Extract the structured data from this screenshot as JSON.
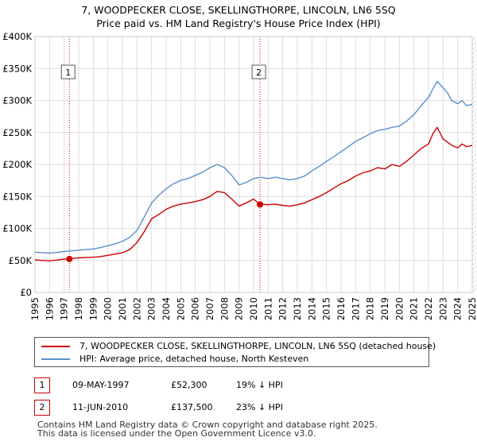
{
  "title_line1": "7, WOODPECKER CLOSE, SKELLINGTHORPE, LINCOLN, LN6 5SQ",
  "title_line2": "Price paid vs. HM Land Registry's House Price Index (HPI)",
  "colors": {
    "property": "#cc0000",
    "hpi": "#5b8fd0",
    "grid": "#dddddd",
    "sale_marker": "#cc0000"
  },
  "chart_data": {
    "type": "line",
    "x_ticks": [
      "1995",
      "1996",
      "1997",
      "1998",
      "1999",
      "2000",
      "2001",
      "2002",
      "2003",
      "2004",
      "2005",
      "2006",
      "2007",
      "2008",
      "2009",
      "2010",
      "2011",
      "2012",
      "2013",
      "2014",
      "2015",
      "2016",
      "2017",
      "2018",
      "2019",
      "2020",
      "2021",
      "2022",
      "2023",
      "2024",
      "2025"
    ],
    "y_ticks": [
      "£0",
      "£50K",
      "£100K",
      "£150K",
      "£200K",
      "£250K",
      "£300K",
      "£350K",
      "£400K"
    ],
    "xlim": [
      1995,
      2025
    ],
    "ylim": [
      0,
      400000
    ],
    "grid": true,
    "hatched_region_start": 2025,
    "series": [
      {
        "name": "7, WOODPECKER CLOSE, SKELLINGTHORPE, LINCOLN, LN6 5SQ (detached house)",
        "color": "#cc0000",
        "x": [
          1995,
          1995.5,
          1996,
          1996.5,
          1997,
          1997.36,
          1997.5,
          1998,
          1998.5,
          1999,
          1999.5,
          2000,
          2000.5,
          2001,
          2001.5,
          2002,
          2002.5,
          2003,
          2003.5,
          2004,
          2004.5,
          2005,
          2005.5,
          2006,
          2006.5,
          2007,
          2007.5,
          2008,
          2008.5,
          2009,
          2009.5,
          2010,
          2010.44,
          2010.5,
          2011,
          2011.5,
          2012,
          2012.5,
          2013,
          2013.5,
          2014,
          2014.5,
          2015,
          2015.5,
          2016,
          2016.5,
          2017,
          2017.5,
          2018,
          2018.5,
          2019,
          2019.5,
          2020,
          2020.5,
          2021,
          2021.5,
          2022,
          2022.3,
          2022.6,
          2023,
          2023.3,
          2023.6,
          2024,
          2024.3,
          2024.6,
          2025
        ],
        "values": [
          51000,
          50000,
          49500,
          50500,
          52000,
          52300,
          53000,
          54000,
          54500,
          55000,
          56000,
          58000,
          60000,
          62000,
          67000,
          78000,
          95000,
          115000,
          122000,
          130000,
          135000,
          138000,
          140000,
          142000,
          145000,
          150000,
          158000,
          156000,
          146000,
          135000,
          140000,
          146000,
          137500,
          138000,
          137000,
          138000,
          136000,
          135000,
          137000,
          140000,
          145000,
          150000,
          156000,
          163000,
          170000,
          175000,
          182000,
          187000,
          190000,
          195000,
          193000,
          200000,
          197000,
          205000,
          215000,
          225000,
          232000,
          248000,
          258000,
          240000,
          235000,
          230000,
          226000,
          232000,
          228000,
          230000
        ]
      },
      {
        "name": "HPI: Average price, detached house, North Kesteven",
        "color": "#5b8fd0",
        "x": [
          1995,
          1995.5,
          1996,
          1996.5,
          1997,
          1997.5,
          1998,
          1998.5,
          1999,
          1999.5,
          2000,
          2000.5,
          2001,
          2001.5,
          2002,
          2002.5,
          2003,
          2003.5,
          2004,
          2004.5,
          2005,
          2005.5,
          2006,
          2006.5,
          2007,
          2007.5,
          2008,
          2008.5,
          2009,
          2009.5,
          2010,
          2010.5,
          2011,
          2011.5,
          2012,
          2012.5,
          2013,
          2013.5,
          2014,
          2014.5,
          2015,
          2015.5,
          2016,
          2016.5,
          2017,
          2017.5,
          2018,
          2018.5,
          2019,
          2019.5,
          2020,
          2020.5,
          2021,
          2021.5,
          2022,
          2022.3,
          2022.6,
          2023,
          2023.3,
          2023.6,
          2024,
          2024.3,
          2024.6,
          2025
        ],
        "values": [
          63000,
          62000,
          61500,
          62500,
          64000,
          65000,
          66000,
          67000,
          68000,
          70000,
          73000,
          76000,
          80000,
          86000,
          97000,
          118000,
          140000,
          152000,
          162000,
          170000,
          175000,
          178000,
          183000,
          188000,
          195000,
          200000,
          195000,
          183000,
          168000,
          172000,
          178000,
          180000,
          178000,
          180000,
          178000,
          176000,
          178000,
          182000,
          190000,
          197000,
          205000,
          212000,
          220000,
          228000,
          236000,
          242000,
          248000,
          253000,
          255000,
          258000,
          260000,
          268000,
          278000,
          292000,
          305000,
          318000,
          330000,
          320000,
          312000,
          300000,
          295000,
          300000,
          292000,
          294000
        ]
      }
    ],
    "annotations": [
      {
        "label": "1",
        "x": 1997.36,
        "y": 52300
      },
      {
        "label": "2",
        "x": 2010.44,
        "y": 137500
      }
    ]
  },
  "legend": {
    "property": "7, WOODPECKER CLOSE, SKELLINGTHORPE, LINCOLN, LN6 5SQ (detached house)",
    "hpi": "HPI: Average price, detached house, North Kesteven"
  },
  "transactions": [
    {
      "num": "1",
      "date": "09-MAY-1997",
      "price": "£52,300",
      "hpi": "19% ↓ HPI"
    },
    {
      "num": "2",
      "date": "11-JUN-2010",
      "price": "£137,500",
      "hpi": "23% ↓ HPI"
    }
  ],
  "footer_line1": "Contains HM Land Registry data © Crown copyright and database right 2025.",
  "footer_line2": "This data is licensed under the Open Government Licence v3.0."
}
